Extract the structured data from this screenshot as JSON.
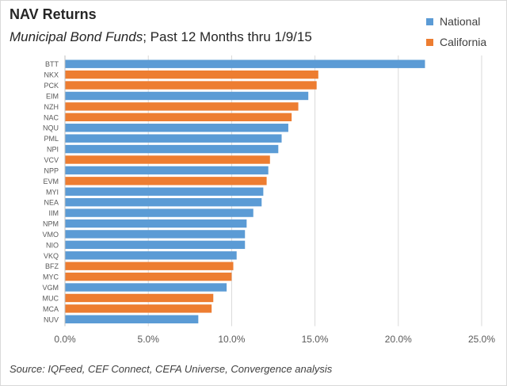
{
  "header": {
    "title": "NAV Returns",
    "subtitle_italic": "Municipal Bond Funds",
    "subtitle_rest": "; Past 12 Months thru 1/9/15"
  },
  "legend": [
    {
      "name": "National",
      "color": "#5b9bd5"
    },
    {
      "name": "California",
      "color": "#ed7d31"
    }
  ],
  "footer": {
    "source": "Source:  IQFeed, CEF Connect, CEFA Universe, Convergence analysis"
  },
  "chart_data": {
    "type": "bar",
    "orientation": "horizontal",
    "categories": [
      "BTT",
      "NKX",
      "PCK",
      "EIM",
      "NZH",
      "NAC",
      "NQU",
      "PML",
      "NPI",
      "VCV",
      "NPP",
      "EVM",
      "MYI",
      "NEA",
      "IIM",
      "NPM",
      "VMO",
      "NIO",
      "VKQ",
      "BFZ",
      "MYC",
      "VGM",
      "MUC",
      "MCA",
      "NUV"
    ],
    "values": [
      21.6,
      15.2,
      15.1,
      14.6,
      14.0,
      13.6,
      13.4,
      13.0,
      12.8,
      12.3,
      12.2,
      12.1,
      11.9,
      11.8,
      11.3,
      10.9,
      10.8,
      10.8,
      10.3,
      10.1,
      10.0,
      9.7,
      8.9,
      8.8,
      8.0
    ],
    "groups": [
      "National",
      "California",
      "California",
      "National",
      "California",
      "California",
      "National",
      "National",
      "National",
      "California",
      "National",
      "California",
      "National",
      "National",
      "National",
      "National",
      "National",
      "National",
      "National",
      "California",
      "California",
      "National",
      "California",
      "California",
      "National"
    ],
    "xlim": [
      0,
      25
    ],
    "xticks": [
      "0.0%",
      "5.0%",
      "10.0%",
      "15.0%",
      "20.0%",
      "25.0%"
    ],
    "grid": true,
    "legend_position": "top-right"
  }
}
